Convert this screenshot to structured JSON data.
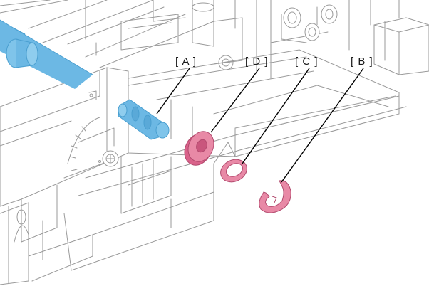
{
  "figure": {
    "labels": {
      "a": "[ A ]",
      "b": "[ B ]",
      "c": "[ C ]",
      "d": "[ D ]"
    }
  },
  "colors": {
    "shaft_blue": "#6cb8e4",
    "shaft_blue_dark": "#4a9fd0",
    "part_pink": "#e889a6",
    "part_pink_dark": "#b24a6e",
    "frame_line": "#9a9a9a",
    "leader_line": "#000000"
  }
}
